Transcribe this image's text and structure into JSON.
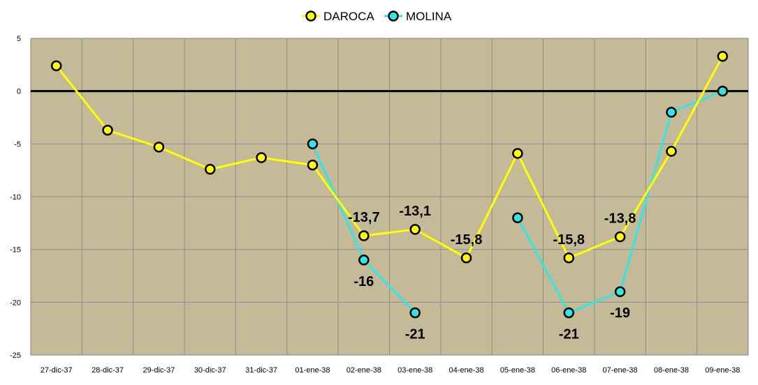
{
  "chart_data": {
    "type": "line",
    "title": "",
    "xlabel": "",
    "ylabel": "",
    "categories": [
      "27-dic-37",
      "28-dic-37",
      "29-dic-37",
      "30-dic-37",
      "31-dic-37",
      "01-ene-38",
      "02-ene-38",
      "03-ene-38",
      "04-ene-38",
      "05-ene-38",
      "06-ene-38",
      "07-ene-38",
      "08-ene-38",
      "09-ene-38"
    ],
    "ylim": [
      -25,
      5
    ],
    "yticks": [
      5,
      0,
      -5,
      -10,
      -15,
      -20,
      -25
    ],
    "grid": true,
    "legend_position": "top",
    "plot_background": "#C4BA98",
    "gridline_color": "#8C8C8C",
    "zero_line_color": "#000000",
    "series": [
      {
        "name": "DAROCA",
        "color": "#FFFF00",
        "values": [
          2.4,
          -3.7,
          -5.3,
          -7.4,
          -6.3,
          -7.0,
          -13.7,
          -13.1,
          -15.8,
          -5.9,
          -15.8,
          -13.8,
          -5.7,
          3.3
        ],
        "data_labels": [
          null,
          null,
          null,
          null,
          null,
          null,
          "-13,7",
          "-13,1",
          "-15,8",
          null,
          "-15,8",
          "-13,8",
          null,
          null
        ]
      },
      {
        "name": "MOLINA",
        "color": "#33E6E6",
        "values": [
          null,
          null,
          null,
          null,
          null,
          -5,
          -16,
          -21,
          null,
          -12,
          -21,
          -19,
          -2,
          0
        ],
        "data_labels": [
          null,
          null,
          null,
          null,
          null,
          null,
          "-16",
          "-21",
          null,
          null,
          "-21",
          "-19",
          null,
          null
        ]
      }
    ]
  }
}
